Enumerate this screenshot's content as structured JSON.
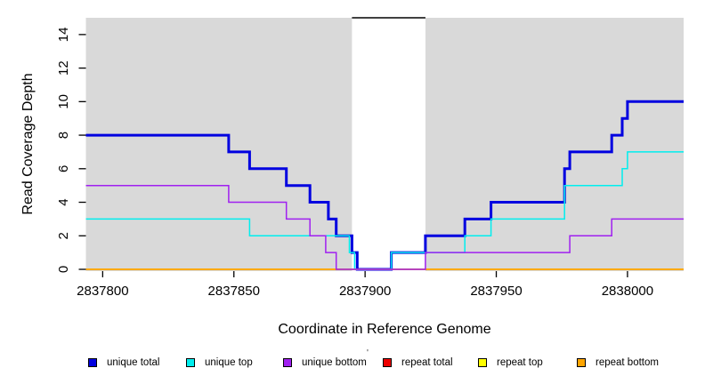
{
  "chart_data": {
    "type": "line",
    "subtype": "step-coverage-plot",
    "title": "",
    "xlabel": "Coordinate in Reference Genome",
    "ylabel": "Read Coverage Depth",
    "xlim": [
      2837793.6,
      2838021.4
    ],
    "ylim": [
      0,
      15
    ],
    "x_ticks": [
      2837800,
      2837850,
      2837900,
      2837950,
      2838000
    ],
    "y_ticks": [
      0,
      2,
      4,
      6,
      8,
      10,
      12,
      14
    ],
    "grid": false,
    "legend_position": "bottom",
    "plot_background": "#d9d9d9",
    "page_background": "#ffffff",
    "masked_region": {
      "start": 2837895,
      "end": 2837923,
      "fill": "#ffffff",
      "top_line_color": "#000000",
      "top_value": 15
    },
    "series": [
      {
        "name": "repeat total",
        "color": "#ee0000",
        "line_width": 1.5,
        "steps": [
          [
            2837793.6,
            0
          ]
        ]
      },
      {
        "name": "repeat top",
        "color": "#ffff00",
        "line_width": 1.5,
        "steps": [
          [
            2837793.6,
            0
          ]
        ]
      },
      {
        "name": "unique total",
        "color": "#0000e0",
        "line_width": 3,
        "steps": [
          [
            2837793.6,
            8
          ],
          [
            2837848,
            7
          ],
          [
            2837856,
            6
          ],
          [
            2837870,
            5
          ],
          [
            2837879,
            4
          ],
          [
            2837886,
            3
          ],
          [
            2837889,
            2
          ],
          [
            2837895,
            1
          ],
          [
            2837897,
            0
          ],
          [
            2837910,
            1
          ],
          [
            2837923,
            2
          ],
          [
            2837938,
            3
          ],
          [
            2837948,
            4
          ],
          [
            2837976,
            6
          ],
          [
            2837978,
            7
          ],
          [
            2837994,
            8
          ],
          [
            2837998,
            9
          ],
          [
            2838000,
            10
          ]
        ]
      },
      {
        "name": "unique top",
        "color": "#00eeee",
        "line_width": 1.5,
        "steps": [
          [
            2837793.6,
            3
          ],
          [
            2837856,
            2
          ],
          [
            2837894,
            1
          ],
          [
            2837896,
            0
          ],
          [
            2837910,
            1
          ],
          [
            2837938,
            2
          ],
          [
            2837948,
            3
          ],
          [
            2837976,
            5
          ],
          [
            2837998,
            6
          ],
          [
            2838000,
            7
          ]
        ]
      },
      {
        "name": "repeat bottom",
        "color": "#ffa500",
        "line_width": 1.5,
        "steps": [
          [
            2837793.6,
            0
          ]
        ]
      },
      {
        "name": "unique bottom",
        "color": "#a020f0",
        "line_width": 1.5,
        "steps": [
          [
            2837793.6,
            5
          ],
          [
            2837848,
            4
          ],
          [
            2837870,
            3
          ],
          [
            2837879,
            2
          ],
          [
            2837885,
            1
          ],
          [
            2837889,
            0
          ],
          [
            2837923,
            1
          ],
          [
            2837978,
            2
          ],
          [
            2837994,
            3
          ]
        ]
      }
    ],
    "legend": {
      "items": [
        {
          "label": "unique total",
          "color": "#0000e0"
        },
        {
          "label": "unique top",
          "color": "#00eeee"
        },
        {
          "label": "unique bottom",
          "color": "#a020f0"
        },
        {
          "label": "repeat total",
          "color": "#ee0000"
        },
        {
          "label": "repeat top",
          "color": "#ffff00"
        },
        {
          "label": "repeat bottom",
          "color": "#ffa500"
        }
      ],
      "stray_mark": "'"
    }
  }
}
